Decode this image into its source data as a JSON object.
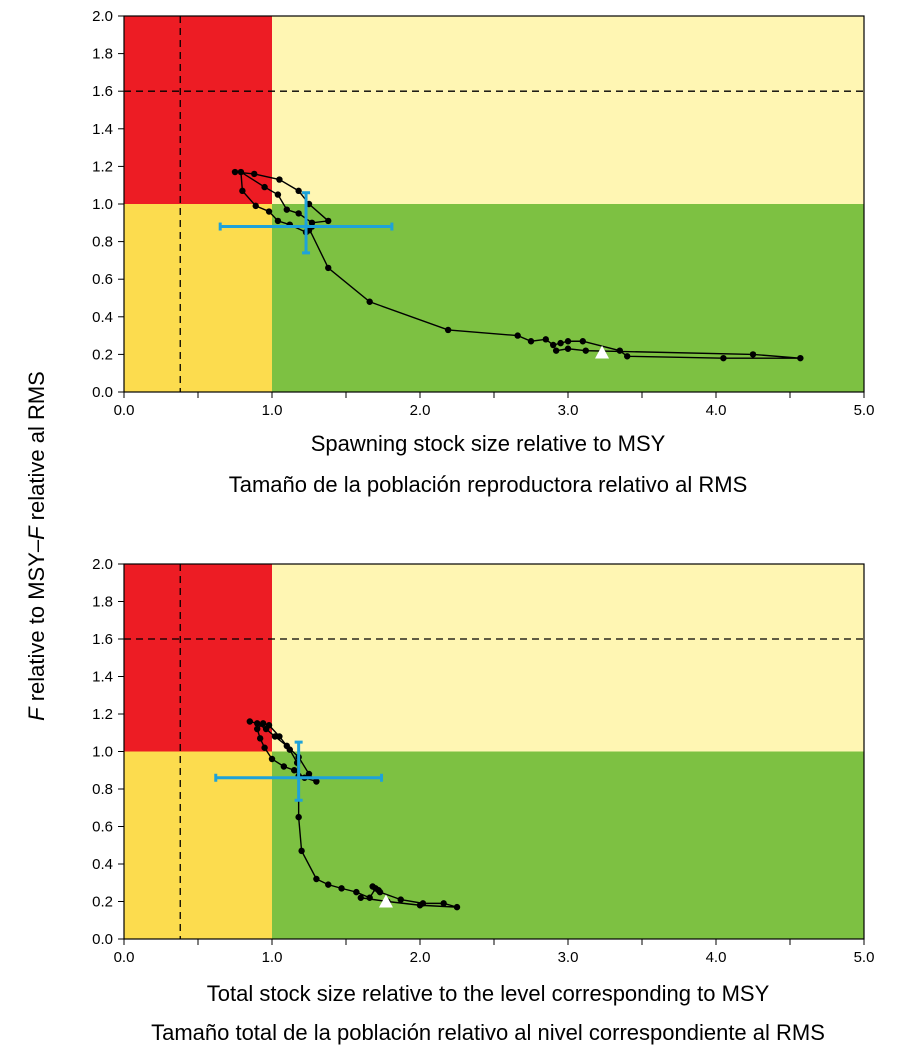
{
  "y_axis_title": {
    "italic_part1": "F",
    "text1": " relative to MSY–",
    "italic_part2": "F",
    "text2": " relative al RMS"
  },
  "colors": {
    "red": "#ed1c24",
    "light_yellow": "#fff6b3",
    "yellow": "#fcdc4e",
    "green": "#7dc142",
    "error_bar": "#1ea2d9",
    "line": "#000000",
    "marker_current": "#ffffff"
  },
  "chart_data": [
    {
      "type": "scatter",
      "xlabel": "Spawning stock size relative to MSY",
      "xlabel2": "Tamaño de la población reproductora relativo al RMS",
      "xlim": [
        0,
        5
      ],
      "ylim": [
        0,
        2
      ],
      "x_ticks": [
        "0.0",
        "1.0",
        "2.0",
        "3.0",
        "4.0",
        "5.0"
      ],
      "y_ticks": [
        "0.0",
        "0.2",
        "0.4",
        "0.6",
        "0.8",
        "1.0",
        "1.2",
        "1.4",
        "1.6",
        "1.8",
        "2.0"
      ],
      "reference_lines": {
        "vertical": 0.38,
        "horizontal": 1.6
      },
      "zone_boundaries": {
        "x": 1.0,
        "y": 1.0
      },
      "trajectory": {
        "x": [
          0.75,
          0.88,
          1.05,
          1.18,
          1.25,
          1.38,
          1.27,
          1.18,
          1.1,
          1.04,
          0.95,
          0.79,
          0.8,
          0.89,
          0.98,
          1.04,
          1.12,
          1.23,
          1.25,
          1.27,
          1.25,
          1.38,
          1.66,
          2.19,
          2.66,
          2.75,
          2.85,
          2.9,
          2.95,
          3.0,
          3.1,
          3.35,
          3.4,
          4.05,
          4.57,
          4.25,
          3.12,
          3.0,
          2.92
        ],
        "y": [
          1.17,
          1.16,
          1.13,
          1.07,
          1.0,
          0.91,
          0.9,
          0.95,
          0.97,
          1.05,
          1.09,
          1.17,
          1.07,
          0.99,
          0.96,
          0.91,
          0.89,
          0.85,
          0.86,
          0.88,
          0.87,
          0.66,
          0.48,
          0.33,
          0.3,
          0.27,
          0.28,
          0.25,
          0.26,
          0.27,
          0.27,
          0.22,
          0.19,
          0.18,
          0.18,
          0.2,
          0.22,
          0.23,
          0.22
        ]
      },
      "current": {
        "x": 3.23,
        "y": 0.21
      },
      "error_bars": {
        "x": 1.23,
        "y": 0.88,
        "x_range": [
          0.65,
          1.81
        ],
        "y_range": [
          0.74,
          1.06
        ]
      }
    },
    {
      "type": "scatter",
      "xlabel": "Total stock size relative to the level corresponding to MSY",
      "xlabel2": "Tamaño total de la población relativo al nivel correspondiente al RMS",
      "xlim": [
        0,
        5
      ],
      "ylim": [
        0,
        2
      ],
      "x_ticks": [
        "0.0",
        "1.0",
        "2.0",
        "3.0",
        "4.0",
        "5.0"
      ],
      "y_ticks": [
        "0.0",
        "0.2",
        "0.4",
        "0.6",
        "0.8",
        "1.0",
        "1.2",
        "1.4",
        "1.6",
        "1.8",
        "2.0"
      ],
      "reference_lines": {
        "vertical": 0.38,
        "horizontal": 1.6
      },
      "zone_boundaries": {
        "x": 1.0,
        "y": 1.0
      },
      "trajectory": {
        "x": [
          0.85,
          0.9,
          0.96,
          1.02,
          1.1,
          1.18,
          1.25,
          1.3,
          1.22,
          1.15,
          1.08,
          1.0,
          0.95,
          0.92,
          0.9,
          0.94,
          0.98,
          1.05,
          1.12,
          1.17,
          1.18,
          1.18,
          1.2,
          1.3,
          1.38,
          1.47,
          1.57,
          1.66,
          1.7,
          1.68,
          1.72,
          1.73,
          1.87,
          2.02,
          2.16,
          2.25,
          2.0,
          1.78,
          1.6
        ],
        "y": [
          1.16,
          1.15,
          1.12,
          1.08,
          1.03,
          0.97,
          0.88,
          0.84,
          0.86,
          0.9,
          0.92,
          0.96,
          1.02,
          1.07,
          1.12,
          1.15,
          1.14,
          1.08,
          1.01,
          0.94,
          0.87,
          0.65,
          0.47,
          0.32,
          0.29,
          0.27,
          0.25,
          0.22,
          0.27,
          0.28,
          0.26,
          0.25,
          0.21,
          0.19,
          0.19,
          0.17,
          0.18,
          0.2,
          0.22
        ]
      },
      "current": {
        "x": 1.77,
        "y": 0.2
      },
      "error_bars": {
        "x": 1.18,
        "y": 0.86,
        "x_range": [
          0.62,
          1.74
        ],
        "y_range": [
          0.74,
          1.05
        ]
      }
    }
  ]
}
